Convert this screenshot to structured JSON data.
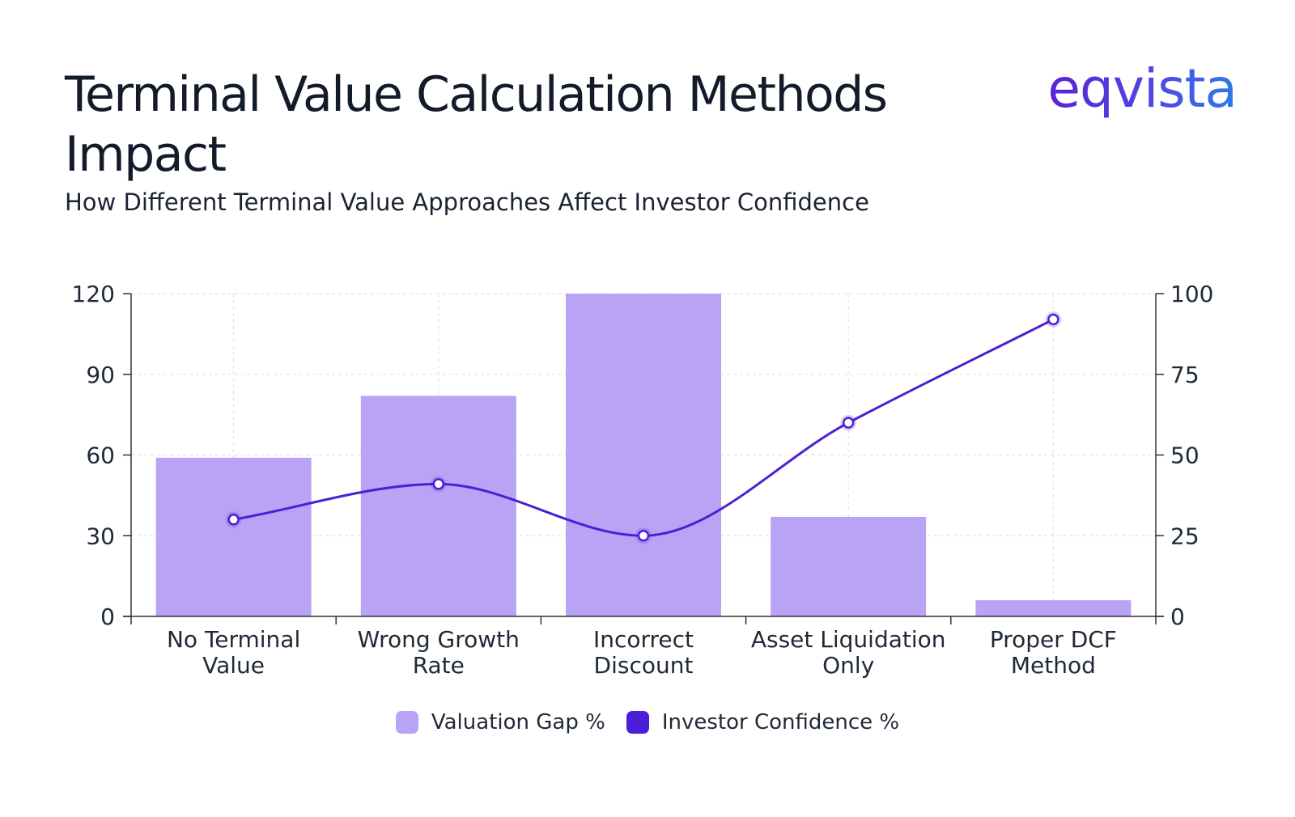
{
  "header": {
    "title": "Terminal Value Calculation Methods Impact",
    "subtitle": "How Different Terminal Value Approaches Affect Investor Confidence",
    "logo_text": "eqvista"
  },
  "colors": {
    "bar": "#b9a3f5",
    "line": "#4c1ed8",
    "grid": "#e2e2e2",
    "axis": "#333333"
  },
  "chart_data": {
    "type": "bar",
    "categories": [
      [
        "No Terminal",
        "Value"
      ],
      [
        "Wrong Growth",
        "Rate"
      ],
      [
        "Incorrect",
        "Discount"
      ],
      [
        "Asset Liquidation",
        "Only"
      ],
      [
        "Proper DCF",
        "Method"
      ]
    ],
    "series": [
      {
        "name": "Valuation Gap %",
        "type": "bar",
        "axis": "left",
        "values": [
          59,
          82,
          120,
          37,
          6
        ]
      },
      {
        "name": "Investor Confidence %",
        "type": "line",
        "axis": "right",
        "values": [
          30,
          41,
          25,
          60,
          92
        ]
      }
    ],
    "y_left": {
      "ylim": [
        0,
        120
      ],
      "ticks": [
        "0",
        "30",
        "60",
        "90",
        "120"
      ]
    },
    "y_right": {
      "ylim": [
        0,
        100
      ],
      "ticks": [
        "0",
        "25",
        "50",
        "75",
        "100"
      ]
    },
    "grid": true,
    "legend_position": "bottom-center"
  }
}
